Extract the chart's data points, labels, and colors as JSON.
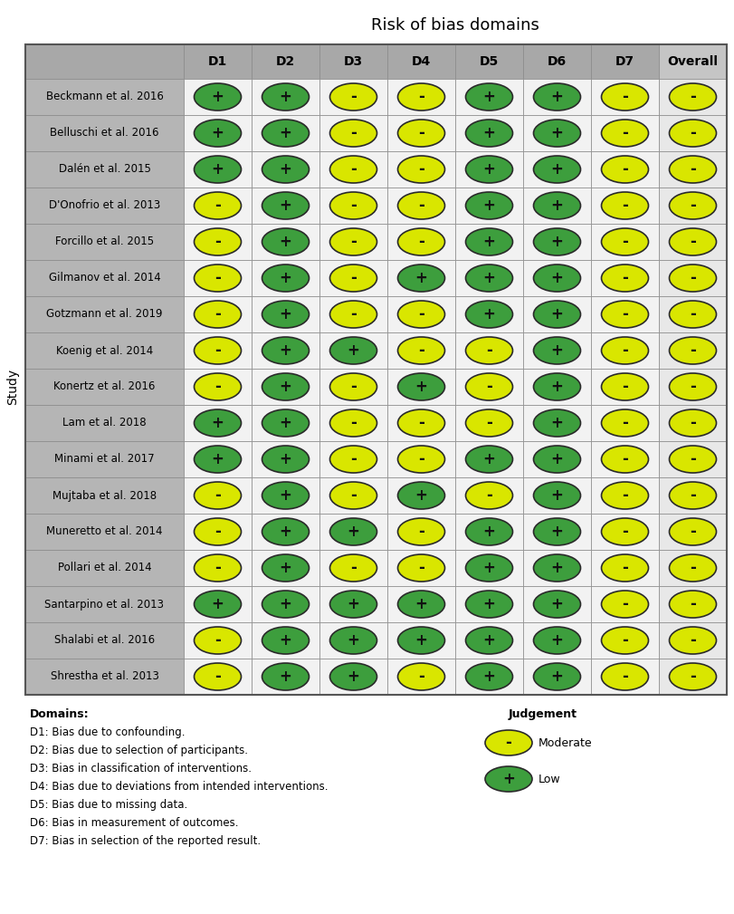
{
  "title": "Risk of bias domains",
  "ylabel": "Study",
  "columns": [
    "D1",
    "D2",
    "D3",
    "D4",
    "D5",
    "D6",
    "D7",
    "Overall"
  ],
  "studies": [
    "Beckmann et al. 2016",
    "Belluschi et al. 2016",
    "Dalén et al. 2015",
    "D'Onofrio et al. 2013",
    "Forcillo et al. 2015",
    "Gilmanov et al. 2014",
    "Gotzmann et al. 2019",
    "Koenig et al. 2014",
    "Konertz et al. 2016",
    "Lam et al. 2018",
    "Minami et al. 2017",
    "Mujtaba et al. 2018",
    "Muneretto et al. 2014",
    "Pollari et al. 2014",
    "Santarpino et al. 2013",
    "Shalabi et al. 2016",
    "Shrestha et al. 2013"
  ],
  "data": [
    [
      "+",
      "+",
      "-",
      "-",
      "+",
      "+",
      "-",
      "-"
    ],
    [
      "+",
      "+",
      "-",
      "-",
      "+",
      "+",
      "-",
      "-"
    ],
    [
      "+",
      "+",
      "-",
      "-",
      "+",
      "+",
      "-",
      "-"
    ],
    [
      "-",
      "+",
      "-",
      "-",
      "+",
      "+",
      "-",
      "-"
    ],
    [
      "-",
      "+",
      "-",
      "-",
      "+",
      "+",
      "-",
      "-"
    ],
    [
      "-",
      "+",
      "-",
      "+",
      "+",
      "+",
      "-",
      "-"
    ],
    [
      "-",
      "+",
      "-",
      "-",
      "+",
      "+",
      "-",
      "-"
    ],
    [
      "-",
      "+",
      "+",
      "-",
      "-",
      "+",
      "-",
      "-"
    ],
    [
      "-",
      "+",
      "-",
      "+",
      "-",
      "+",
      "-",
      "-"
    ],
    [
      "+",
      "+",
      "-",
      "-",
      "-",
      "+",
      "-",
      "-"
    ],
    [
      "+",
      "+",
      "-",
      "-",
      "+",
      "+",
      "-",
      "-"
    ],
    [
      "-",
      "+",
      "-",
      "+",
      "-",
      "+",
      "-",
      "-"
    ],
    [
      "-",
      "+",
      "+",
      "-",
      "+",
      "+",
      "-",
      "-"
    ],
    [
      "-",
      "+",
      "-",
      "-",
      "+",
      "+",
      "-",
      "-"
    ],
    [
      "+",
      "+",
      "+",
      "+",
      "+",
      "+",
      "-",
      "-"
    ],
    [
      "-",
      "+",
      "+",
      "+",
      "+",
      "+",
      "-",
      "-"
    ],
    [
      "-",
      "+",
      "+",
      "-",
      "+",
      "+",
      "-",
      "-"
    ]
  ],
  "color_plus": "#3d9e3d",
  "color_minus": "#d9e600",
  "header_bg": "#a8a8a8",
  "row_bg": "#b5b5b5",
  "overall_col_bg": "#c5c5c5",
  "cell_bg": "#f2f2f2",
  "overall_cell_bg": "#e8e8e8",
  "grid_color": "#888888",
  "domains_text": [
    "Domains:",
    "D1: Bias due to confounding.",
    "D2: Bias due to selection of participants.",
    "D3: Bias in classification of interventions.",
    "D4: Bias due to deviations from intended interventions.",
    "D5: Bias due to missing data.",
    "D6: Bias in measurement of outcomes.",
    "D7: Bias in selection of the reported result."
  ],
  "judgement_text": "Judgement",
  "moderate_label": "Moderate",
  "low_label": "Low"
}
